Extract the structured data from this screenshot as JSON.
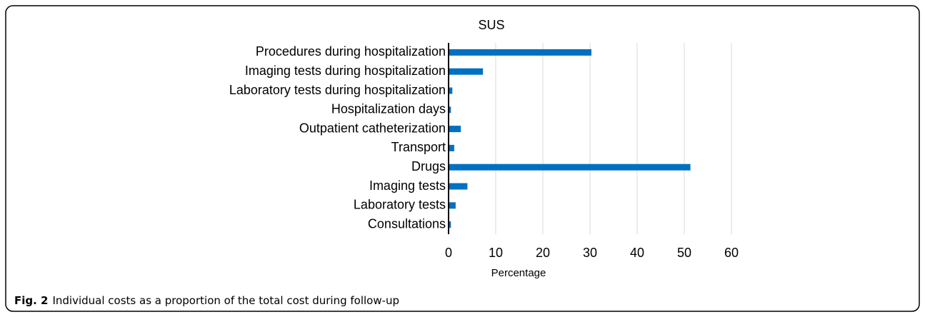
{
  "chart_data": {
    "type": "bar",
    "orientation": "horizontal",
    "title": "SUS",
    "categories": [
      "Procedures during hospitalization",
      "Imaging tests during hospitalization",
      "Laboratory tests during hospitalization",
      "Hospitalization days",
      "Outpatient catheterization",
      "Transport",
      "Drugs",
      "Imaging tests",
      "Laboratory tests",
      "Consultations"
    ],
    "values": [
      30.3,
      7.3,
      0.8,
      0.5,
      2.6,
      1.2,
      51.3,
      4.0,
      1.5,
      0.5
    ],
    "color": "#0070c0",
    "xlabel": "Percentage",
    "xlim": [
      0,
      60
    ],
    "xticks": [
      0,
      10,
      20,
      30,
      40,
      50,
      60
    ],
    "grid": true
  },
  "caption": {
    "label": "Fig. 2",
    "text": "Individual costs as a proportion of the total cost during follow-up"
  }
}
